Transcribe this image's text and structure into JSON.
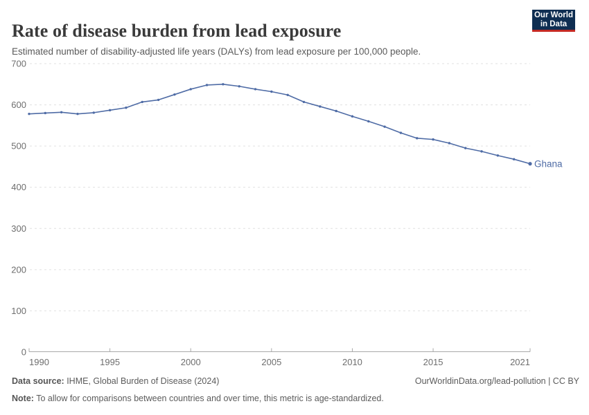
{
  "header": {
    "title": "Rate of disease burden from lead exposure",
    "subtitle": "Estimated number of disability-adjusted life years (DALYs) from lead exposure per 100,000 people.",
    "logo": {
      "line1": "Our World",
      "line2": "in Data"
    }
  },
  "footer": {
    "source_label": "Data source:",
    "source_text": " IHME, Global Burden of Disease (2024)",
    "note_label": "Note:",
    "note_text": " To allow for comparisons between countries and over time, this metric is age-standardized.",
    "link_text": "OurWorldinData.org/lead-pollution | CC BY"
  },
  "colors": {
    "line": "#4e6ba5",
    "series_label": "#4e6ba5",
    "grid": "#e0e0e0",
    "axis": "#a8a8a8",
    "axis_text": "#6e6e6e",
    "title_text": "#3a3a3a",
    "logo_bg": "#0f2e52",
    "logo_stripe": "#c52a24"
  },
  "chart_data": {
    "type": "line",
    "title": "Rate of disease burden from lead exposure",
    "subtitle": "Estimated number of disability-adjusted life years (DALYs) from lead exposure per 100,000 people.",
    "xlabel": "",
    "ylabel": "",
    "x": [
      1990,
      1991,
      1992,
      1993,
      1994,
      1995,
      1996,
      1997,
      1998,
      1999,
      2000,
      2001,
      2002,
      2003,
      2004,
      2005,
      2006,
      2007,
      2008,
      2009,
      2010,
      2011,
      2012,
      2013,
      2014,
      2015,
      2016,
      2017,
      2018,
      2019,
      2020,
      2021
    ],
    "series": [
      {
        "name": "Ghana",
        "values": [
          578,
          580,
          582,
          578,
          581,
          587,
          593,
          607,
          612,
          625,
          638,
          648,
          650,
          645,
          638,
          632,
          624,
          607,
          596,
          585,
          572,
          560,
          547,
          532,
          519,
          516,
          507,
          495,
          487,
          477,
          468,
          457
        ]
      }
    ],
    "ylim": [
      0,
      700
    ],
    "yticks": [
      0,
      100,
      200,
      300,
      400,
      500,
      600,
      700
    ],
    "xticks": [
      1990,
      1995,
      2000,
      2005,
      2010,
      2015,
      2021
    ],
    "grid": "horizontal-dashed",
    "legend_position": "end-of-line-label",
    "end_label": "Ghana"
  }
}
